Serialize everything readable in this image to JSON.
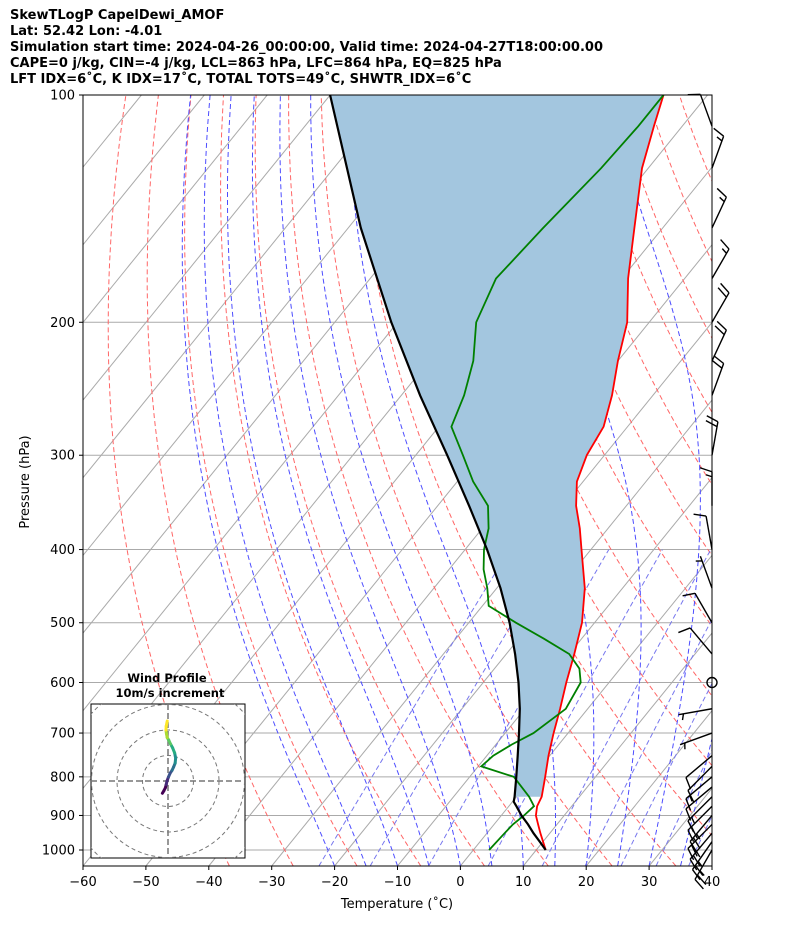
{
  "header": {
    "line1": "SkewTLogP CapelDewi_AMOF",
    "line2": "Lat: 52.42   Lon: -4.01",
    "line3": "Simulation start time: 2024-04-26_00:00:00, Valid time: 2024-04-27T18:00:00.00",
    "line4": "CAPE=0 j/kg, CIN=-4 j/kg, LCL=863 hPa, LFC=864 hPa, EQ=825 hPa",
    "line5": "LFT IDX=6˚C, K IDX=17˚C, TOTAL TOTS=49˚C, SHWTR_IDX=6˚C"
  },
  "chart_data": [
    {
      "type": "line",
      "kind": "skew-t-log-p",
      "xlabel": "Temperature (˚C)",
      "ylabel": "Pressure (hPa)",
      "xlim": [
        -60,
        40
      ],
      "ylim": [
        1050,
        100
      ],
      "y_scale": "log",
      "x_ticks": [
        -60,
        -50,
        -40,
        -30,
        -20,
        -10,
        0,
        10,
        20,
        30,
        40
      ],
      "x_tick_labels": [
        "−60",
        "−50",
        "−40",
        "−30",
        "−20",
        "−10",
        "0",
        "10",
        "20",
        "30",
        "40"
      ],
      "y_ticks": [
        1000,
        900,
        800,
        700,
        600,
        500,
        400,
        300,
        200,
        100
      ],
      "y_tick_labels": [
        "1000",
        "900",
        "800",
        "700",
        "600",
        "500",
        "400",
        "300",
        "200",
        "100"
      ],
      "grid": true,
      "shaded_region": "CIN, light blue between parcel and temperature",
      "colors": {
        "temperature": "#ff0000",
        "dewpoint": "#008000",
        "parcel": "#000000",
        "shade": "#a3c6df",
        "dry_adiabat": "#ff6666",
        "moist_adiabat": "#4d4dff",
        "mixing_ratio": "#7777ee",
        "isotherm": "#aaaaaa",
        "purple": "#9944cc"
      },
      "series": [
        {
          "key": "temperature",
          "pressure": [
            1000,
            950,
            925,
            900,
            875,
            850,
            800,
            750,
            700,
            650,
            600,
            550,
            500,
            450,
            400,
            375,
            350,
            325,
            300,
            275,
            250,
            225,
            200,
            175,
            150,
            125,
            110,
            100
          ],
          "temp": [
            11.5,
            8.5,
            7.0,
            5.5,
            4.5,
            4.0,
            2.0,
            -0.2,
            -2.3,
            -4.4,
            -6.8,
            -9.2,
            -12.0,
            -16.0,
            -21.5,
            -24.5,
            -28.0,
            -31.0,
            -32.8,
            -33.8,
            -36.5,
            -40.0,
            -43.5,
            -49.0,
            -54.5,
            -61.0,
            -64.5,
            -67.0
          ]
        },
        {
          "key": "dewpoint",
          "pressure": [
            1000,
            950,
            925,
            900,
            875,
            850,
            800,
            775,
            750,
            725,
            700,
            650,
            600,
            575,
            550,
            525,
            500,
            475,
            450,
            425,
            400,
            375,
            350,
            325,
            300,
            275,
            250,
            225,
            200,
            175,
            150,
            125,
            110,
            100
          ],
          "temp": [
            2.5,
            2.8,
            3.0,
            3.6,
            4.0,
            2.0,
            -3.0,
            -9.5,
            -9.0,
            -7.5,
            -5.5,
            -3.5,
            -4.5,
            -6.5,
            -10.0,
            -16.0,
            -22.5,
            -29.0,
            -31.5,
            -34.5,
            -37.0,
            -39.0,
            -42.0,
            -47.5,
            -52.5,
            -58.0,
            -60.0,
            -63.0,
            -67.5,
            -70.0,
            -69.0,
            -67.5,
            -67.0,
            -67.0
          ]
        },
        {
          "key": "parcel",
          "pressure": [
            1000,
            975,
            950,
            925,
            900,
            875,
            863,
            850,
            800,
            750,
            700,
            650,
            600,
            550,
            500,
            450,
            400,
            350,
            300,
            250,
            200,
            150,
            100
          ],
          "temp": [
            11.5,
            9.5,
            7.4,
            5.4,
            3.2,
            1.2,
            0.2,
            -0.3,
            -2.6,
            -5.1,
            -7.8,
            -10.8,
            -14.4,
            -18.6,
            -23.5,
            -29.4,
            -36.5,
            -45.0,
            -55.0,
            -67.0,
            -81.0,
            -98.0,
            -120.0
          ]
        }
      ],
      "wind_barbs": {
        "note": "barbs drawn at right edge; speeds in knots",
        "pressure": [
          1000,
          975,
          950,
          925,
          900,
          875,
          850,
          825,
          800,
          775,
          750,
          700,
          650,
          600,
          550,
          500,
          450,
          400,
          350,
          300,
          250,
          225,
          200,
          175,
          150,
          125,
          110
        ],
        "speed_kt": [
          25,
          25,
          25,
          20,
          25,
          20,
          15,
          10,
          15,
          10,
          10,
          5,
          5,
          0,
          10,
          10,
          5,
          10,
          15,
          20,
          20,
          20,
          20,
          15,
          15,
          15,
          10
        ],
        "direction_deg": [
          210,
          215,
          220,
          225,
          220,
          225,
          225,
          230,
          230,
          225,
          230,
          250,
          260,
          0,
          320,
          330,
          340,
          350,
          0,
          10,
          20,
          25,
          30,
          30,
          25,
          20,
          340
        ]
      }
    },
    {
      "type": "scatter",
      "kind": "hodograph",
      "title": "Wind Profile",
      "subtitle": "10m/s increment",
      "ring_increment_ms": 10,
      "u": [
        -2.2,
        -1.6,
        -1.0,
        -0.7,
        -0.4,
        0.2,
        0.8,
        1.6,
        2.2,
        2.8,
        3.0,
        2.6,
        1.8,
        1.0,
        0.3,
        -0.3,
        -0.6,
        -0.8,
        -0.7,
        -0.3
      ],
      "v": [
        -4.8,
        -3.8,
        -2.6,
        -1.4,
        0.0,
        1.6,
        3.0,
        4.2,
        5.5,
        7.0,
        9.0,
        11.0,
        13.0,
        14.5,
        16.0,
        17.0,
        18.5,
        20.0,
        21.5,
        23.5
      ],
      "colormap": "viridis (low to high)"
    }
  ]
}
